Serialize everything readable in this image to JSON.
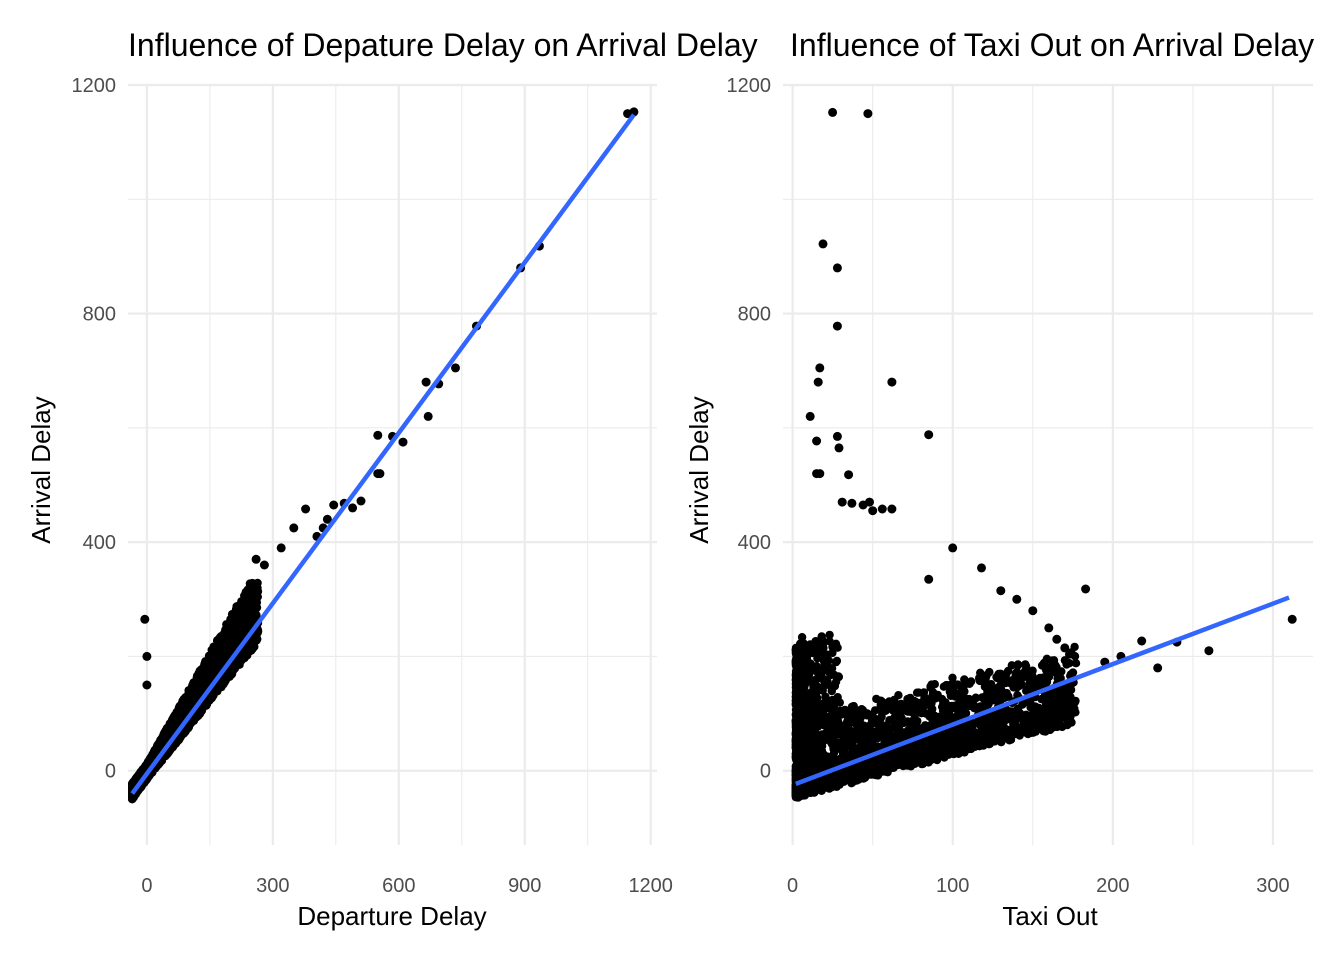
{
  "chart_data": [
    {
      "type": "scatter",
      "title": "Influence of Depature Delay on Arrival Delay",
      "xlabel": "Departure Delay",
      "ylabel": "Arrival Delay",
      "xlim": [
        -45,
        1215
      ],
      "ylim": [
        -130,
        1200
      ],
      "x_ticks": [
        0,
        300,
        600,
        900,
        1200
      ],
      "y_ticks": [
        0,
        400,
        800,
        1200
      ],
      "grid": true,
      "legend": "none",
      "colors": {
        "points": "#000000",
        "fit_line": "#3366ff"
      },
      "fit_line": {
        "x": [
          -35,
          1160
        ],
        "y": [
          -40,
          1148
        ]
      },
      "outliers": [
        [
          1145,
          1150
        ],
        [
          1160,
          1153
        ],
        [
          935,
          918
        ],
        [
          890,
          880
        ],
        [
          785,
          778
        ],
        [
          735,
          705
        ],
        [
          665,
          680
        ],
        [
          695,
          677
        ],
        [
          670,
          620
        ],
        [
          550,
          587
        ],
        [
          585,
          585
        ],
        [
          610,
          575
        ],
        [
          550,
          520
        ],
        [
          555,
          520
        ],
        [
          378,
          458
        ],
        [
          510,
          472
        ],
        [
          470,
          468
        ],
        [
          445,
          465
        ],
        [
          490,
          460
        ],
        [
          430,
          440
        ],
        [
          420,
          425
        ],
        [
          350,
          425
        ],
        [
          405,
          410
        ],
        [
          260,
          370
        ],
        [
          320,
          390
        ],
        [
          280,
          360
        ],
        [
          -5,
          265
        ],
        [
          0,
          200
        ],
        [
          0,
          150
        ]
      ]
    },
    {
      "type": "scatter",
      "title": "Influence of Taxi Out on Arrival Delay",
      "xlabel": "Taxi Out",
      "ylabel": "Arrival Delay",
      "xlim": [
        -6,
        325
      ],
      "ylim": [
        -130,
        1200
      ],
      "x_ticks": [
        0,
        100,
        200,
        300
      ],
      "y_ticks": [
        0,
        400,
        800,
        1200
      ],
      "grid": true,
      "legend": "none",
      "colors": {
        "points": "#000000",
        "fit_line": "#3366ff"
      },
      "fit_line": {
        "x": [
          2,
          310
        ],
        "y": [
          -23,
          303
        ]
      },
      "outliers": [
        [
          25,
          1152
        ],
        [
          47,
          1150
        ],
        [
          19,
          922
        ],
        [
          28,
          880
        ],
        [
          28,
          778
        ],
        [
          17,
          705
        ],
        [
          16,
          680
        ],
        [
          62,
          680
        ],
        [
          11,
          620
        ],
        [
          85,
          588
        ],
        [
          28,
          585
        ],
        [
          15,
          577
        ],
        [
          29,
          565
        ],
        [
          35,
          518
        ],
        [
          15,
          520
        ],
        [
          17,
          520
        ],
        [
          31,
          470
        ],
        [
          44,
          465
        ],
        [
          48,
          470
        ],
        [
          62,
          458
        ],
        [
          56,
          458
        ],
        [
          37,
          468
        ],
        [
          50,
          455
        ],
        [
          100,
          390
        ],
        [
          118,
          355
        ],
        [
          85,
          335
        ],
        [
          130,
          315
        ],
        [
          183,
          318
        ],
        [
          312,
          265
        ],
        [
          260,
          210
        ],
        [
          240,
          225
        ],
        [
          228,
          180
        ],
        [
          218,
          227
        ],
        [
          205,
          200
        ],
        [
          195,
          190
        ],
        [
          140,
          300
        ],
        [
          150,
          280
        ],
        [
          160,
          250
        ],
        [
          165,
          230
        ],
        [
          170,
          215
        ]
      ]
    }
  ]
}
